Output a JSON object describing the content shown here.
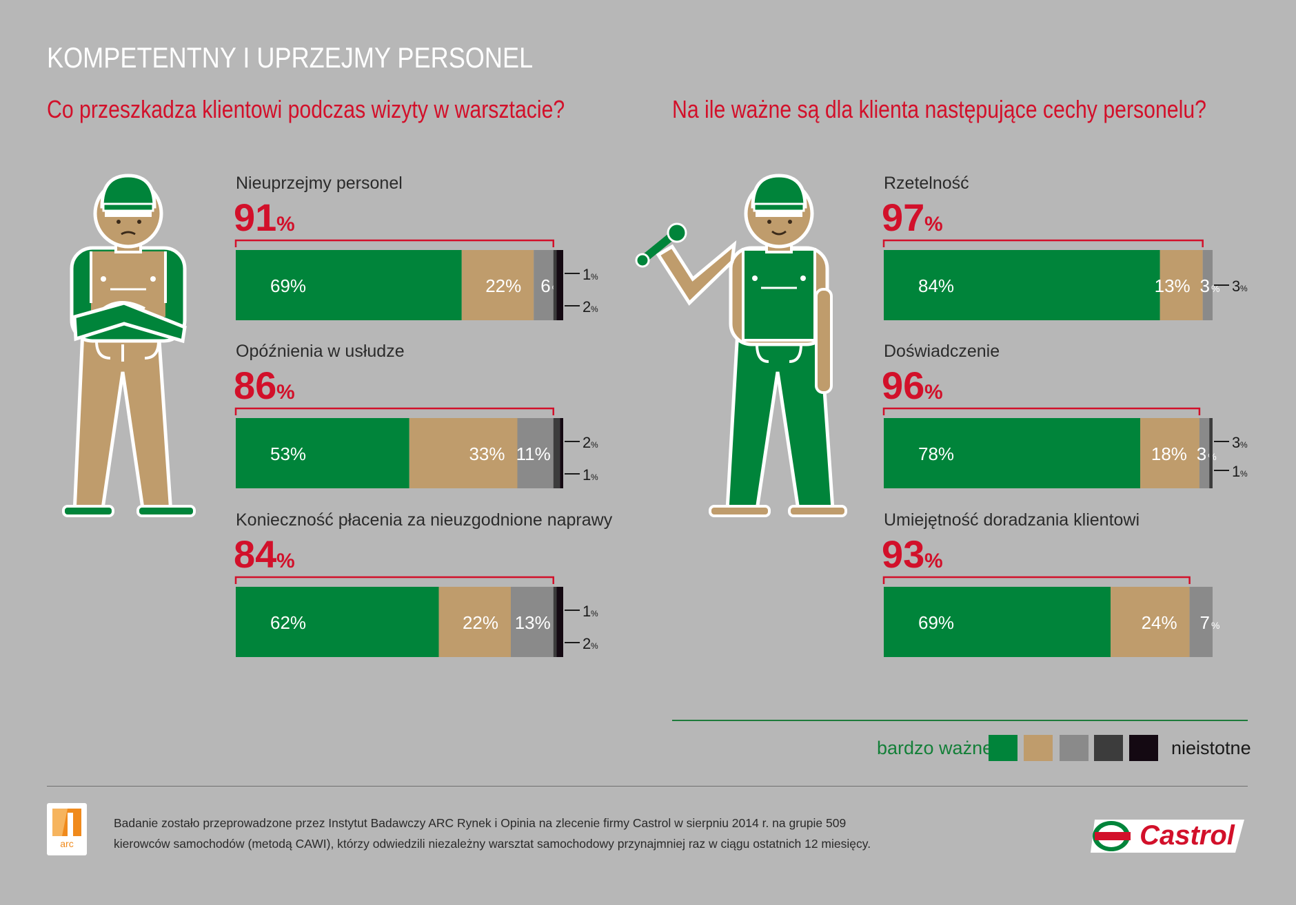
{
  "title": "KOMPETENTNY I UPRZEJMY PERSONEL",
  "left_question": "Co przeszkadza klientowi podczas wizyty w warsztacie?",
  "right_question": "Na ile ważne są dla klienta następujące cechy personelu?",
  "colors": {
    "c1": "#00843a",
    "c2": "#bf9c6c",
    "c3": "#8a8a8a",
    "c4": "#3c3c3c",
    "c5": "#140912",
    "accent": "#d2102a",
    "bg": "#b7b7b7"
  },
  "chart_data": [
    {
      "type": "bar",
      "orientation": "horizontal-stacked",
      "title": "Co przeszkadza klientowi podczas wizyty w warsztacie?",
      "items": [
        {
          "label": "Nieuprzejmy personel",
          "total": "91",
          "values": [
            69,
            22,
            6,
            1,
            2
          ],
          "labels": [
            "69%",
            "22%",
            "6",
            "1",
            "2"
          ]
        },
        {
          "label": "Opóźnienia w usłudze",
          "total": "86",
          "values": [
            53,
            33,
            11,
            2,
            1
          ],
          "labels": [
            "53%",
            "33%",
            "11%",
            "2",
            "1"
          ]
        },
        {
          "label": "Konieczność płacenia za nieuzgodnione naprawy",
          "total": "84",
          "values": [
            62,
            22,
            13,
            1,
            2
          ],
          "labels": [
            "62%",
            "22%",
            "13%",
            "1",
            "2"
          ]
        }
      ]
    },
    {
      "type": "bar",
      "orientation": "horizontal-stacked",
      "title": "Na ile ważne są dla klienta następujące cechy personelu?",
      "items": [
        {
          "label": "Rzetelność",
          "total": "97",
          "values": [
            84,
            13,
            3,
            0,
            0
          ],
          "labels": [
            "84%",
            "13%",
            "3",
            "",
            ""
          ]
        },
        {
          "label": "Doświadczenie",
          "total": "96",
          "values": [
            78,
            18,
            3,
            1,
            0
          ],
          "labels": [
            "78%",
            "18%",
            "3",
            "1",
            ""
          ]
        },
        {
          "label": "Umiejętność doradzania klientowi",
          "total": "93",
          "values": [
            69,
            24,
            7,
            0,
            0
          ],
          "labels": [
            "69%",
            "24%",
            "7",
            "",
            ""
          ]
        }
      ]
    }
  ],
  "legend": {
    "left": "bardzo ważne",
    "right": "nieistotne"
  },
  "footnote": "Badanie zostało przeprowadzone przez Instytut Badawczy ARC Rynek i Opinia na zlecenie firmy Castrol w sierpniu 2014 r. na grupie 509 kierowców samochodów (metodą CAWI), którzy odwiedzili niezależny warsztat samochodowy przynajmniej raz w ciągu ostatnich 12 miesięcy.",
  "logo_arc": "arc",
  "logo_castrol": "Castrol"
}
